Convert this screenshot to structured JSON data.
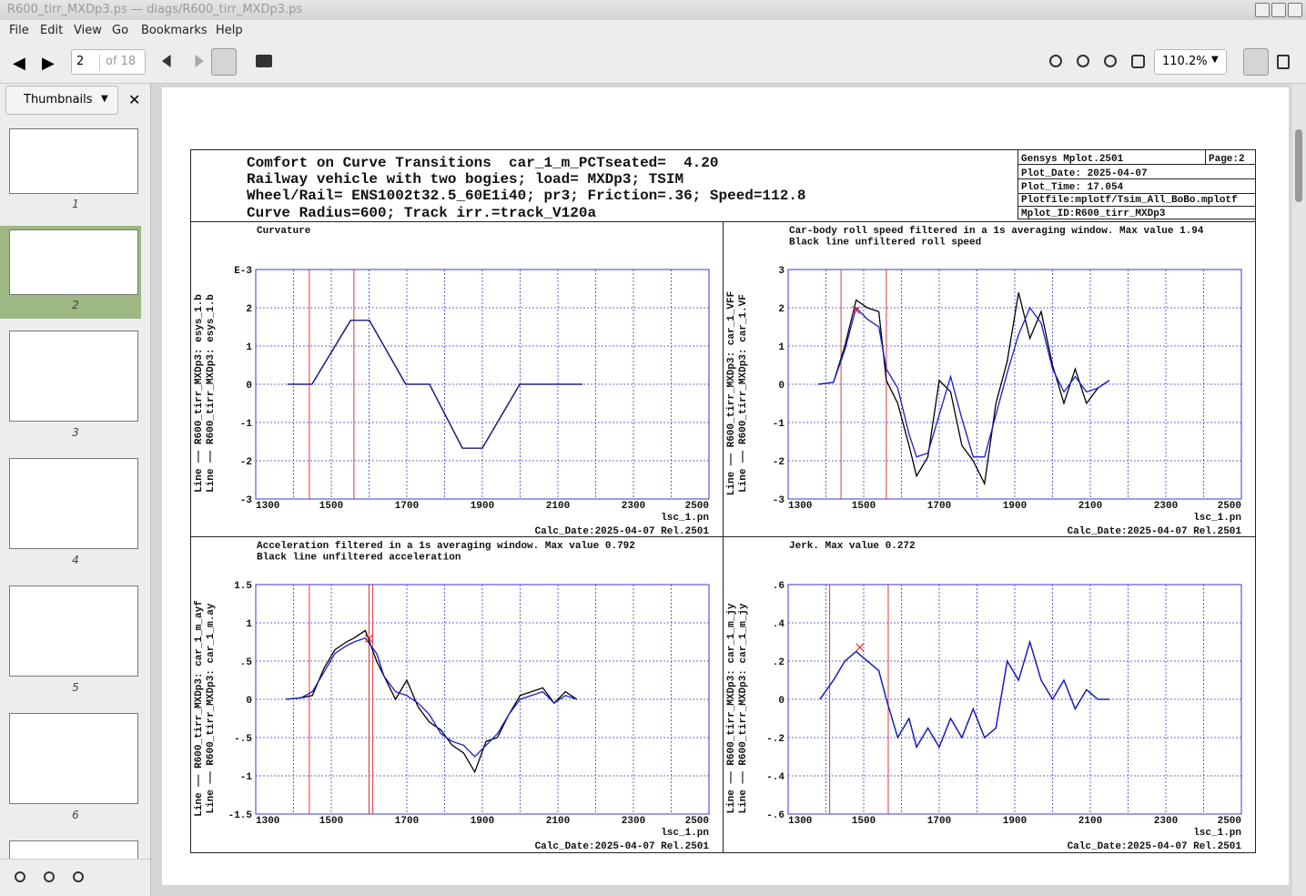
{
  "window": {
    "title": "R600_tirr_MXDp3.ps — diags/R600_tirr_MXDp3.ps"
  },
  "menu": [
    "File",
    "Edit",
    "View",
    "Go",
    "Bookmarks",
    "Help"
  ],
  "toolbar": {
    "page": "2",
    "page_count": "of 18",
    "zoom": "110.2%"
  },
  "sidebar": {
    "mode": "Thumbnails",
    "pages": [
      "1",
      "2",
      "3",
      "4",
      "5",
      "6"
    ]
  },
  "document": {
    "header": [
      "Comfort on Curve Transitions  car_1_m_PCTseated=  4.20",
      "Railway vehicle with two bogies; load= MXDp3; TSIM",
      "Wheel/Rail= ENS1002t32.5_60E1i40; pr3; Friction=.36; Speed=112.8",
      "Curve Radius=600; Track irr.=track_V120a"
    ],
    "info": {
      "program": "Gensys Mplot.2501",
      "page": "Page:2",
      "plot_date": "Plot_Date: 2025-04-07",
      "plot_time": "Plot_Time: 17.054",
      "plotfile": "Plotfile:mplotf/Tsim_All_BoBo.mplotf",
      "mplot_id": "Mplot_ID:R600_tirr_MXDp3"
    }
  },
  "chart_data": [
    {
      "type": "line",
      "title": [
        "Curvature"
      ],
      "x": [
        1384,
        1449,
        1551,
        1601,
        1697,
        1760,
        1847,
        1900,
        1999,
        2165
      ],
      "series": [
        {
          "name": "Line —— R600_tirr_MXDp3: esys_1.b",
          "color": "#1a1a8c",
          "values": [
            0,
            0,
            1.67,
            1.67,
            0,
            0,
            -1.67,
            -1.67,
            0,
            0
          ]
        },
        {
          "name": "Line —— R600_tirr_MXDp3: esys_1.b",
          "color": "#000000",
          "values": [
            0,
            0,
            1.67,
            1.67,
            0,
            0,
            -1.67,
            -1.67,
            0,
            0
          ]
        }
      ],
      "xlim": [
        1300,
        2500
      ],
      "xticks": [
        1300,
        1500,
        1700,
        1900,
        2100,
        2300,
        2500
      ],
      "xgrid": [
        1400,
        1600,
        1800,
        2000,
        2200,
        2400
      ],
      "ylim": [
        -3,
        3
      ],
      "yticks": [
        {
          "value": 3,
          "label": "E-3"
        },
        2,
        1,
        0,
        -1,
        -2,
        -3
      ],
      "markers": [
        1442,
        1560
      ],
      "xlabel": "lsc_1.pn",
      "footer": "Calc_Date:2025-04-07 Rel.2501",
      "grid": true
    },
    {
      "type": "line",
      "title": [
        "Car-body roll speed filtered in a 1s averaging window.  Max value  1.94",
        "Black line unfiltered roll speed"
      ],
      "x": [
        1380,
        1420,
        1450,
        1480,
        1510,
        1540,
        1560,
        1590,
        1620,
        1640,
        1670,
        1700,
        1730,
        1760,
        1790,
        1820,
        1850,
        1880,
        1910,
        1940,
        1970,
        2000,
        2030,
        2060,
        2090,
        2120,
        2150
      ],
      "series": [
        {
          "name": "Line —— R600_tirr_MXDp3: car_1_VFF",
          "color": "#1a1acc",
          "values": [
            0,
            0.05,
            0.9,
            2.0,
            1.7,
            1.5,
            0.4,
            -0.1,
            -1.3,
            -1.9,
            -1.8,
            -0.8,
            0.2,
            -0.9,
            -1.9,
            -1.9,
            -0.8,
            0.3,
            1.3,
            2.0,
            1.6,
            0.4,
            -0.2,
            0.2,
            -0.2,
            -0.1,
            0.1
          ]
        },
        {
          "name": "Line —— R600_tirr_MXDp3: car_1.VF",
          "color": "#000000",
          "values": [
            0,
            0.05,
            1.0,
            2.2,
            2.0,
            1.9,
            0.1,
            -0.5,
            -1.6,
            -2.4,
            -1.9,
            0.1,
            -0.2,
            -1.6,
            -2.0,
            -2.6,
            -0.5,
            0.6,
            2.4,
            1.2,
            1.9,
            0.5,
            -0.5,
            0.4,
            -0.5,
            -0.1,
            0.1
          ]
        }
      ],
      "xlim": [
        1300,
        2500
      ],
      "xticks": [
        1300,
        1500,
        1700,
        1900,
        2100,
        2300,
        2500
      ],
      "xgrid": [
        1400,
        1600,
        1800,
        2000,
        2200,
        2400
      ],
      "ylim": [
        -3,
        3
      ],
      "yticks": [
        3,
        2,
        1,
        0,
        -1,
        -2,
        -3
      ],
      "markers": [
        1440,
        1560
      ],
      "peak_marker": {
        "x": 1480,
        "y": 1.94
      },
      "xlabel": "lsc_1.pn",
      "footer": "Calc_Date:2025-04-07 Rel.2501",
      "grid": true
    },
    {
      "type": "line",
      "title": [
        "Acceleration filtered in a 1s averaging window.  Max value 0.792",
        "Black line unfiltered acceleration"
      ],
      "x": [
        1380,
        1420,
        1450,
        1480,
        1510,
        1540,
        1560,
        1590,
        1620,
        1640,
        1670,
        1700,
        1730,
        1760,
        1790,
        1820,
        1850,
        1880,
        1910,
        1940,
        1970,
        2000,
        2030,
        2060,
        2090,
        2120,
        2150
      ],
      "series": [
        {
          "name": "Line —— R600_tirr_MXDp3: car_1_m_ayf",
          "color": "#1a1acc",
          "values": [
            0,
            0.02,
            0.1,
            0.35,
            0.6,
            0.7,
            0.75,
            0.8,
            0.6,
            0.3,
            0.1,
            0.05,
            -0.05,
            -0.2,
            -0.45,
            -0.55,
            -0.6,
            -0.75,
            -0.6,
            -0.45,
            -0.2,
            0,
            0.05,
            0.1,
            -0.05,
            0.05,
            0
          ]
        },
        {
          "name": "Line —— R600_tirr_MXDp3: car_1_m.ay",
          "color": "#000000",
          "values": [
            0,
            0.02,
            0.05,
            0.4,
            0.65,
            0.75,
            0.8,
            0.9,
            0.5,
            0.3,
            0,
            0.25,
            -0.1,
            -0.3,
            -0.4,
            -0.6,
            -0.7,
            -0.95,
            -0.55,
            -0.5,
            -0.2,
            0.05,
            0.1,
            0.15,
            -0.05,
            0.1,
            0
          ]
        }
      ],
      "xlim": [
        1300,
        2500
      ],
      "xticks": [
        1300,
        1500,
        1700,
        1900,
        2100,
        2300,
        2500
      ],
      "xgrid": [
        1400,
        1600,
        1800,
        2000,
        2200,
        2400
      ],
      "ylim": [
        -1.5,
        1.5
      ],
      "yticks": [
        1.5,
        1,
        {
          "value": 0.5,
          "label": ".5"
        },
        0,
        {
          "value": -0.5,
          "label": "-.5"
        },
        -1,
        -1.5
      ],
      "markers": [
        1442,
        1600,
        1610
      ],
      "peak_marker": {
        "x": 1600,
        "y": 0.792
      },
      "xlabel": "lsc_1.pn",
      "footer": "Calc_Date:2025-04-07 Rel.2501",
      "grid": true
    },
    {
      "type": "line",
      "title": [
        "Jerk.  Max value 0.272"
      ],
      "x": [
        1384,
        1420,
        1450,
        1480,
        1510,
        1540,
        1560,
        1590,
        1620,
        1640,
        1670,
        1700,
        1730,
        1760,
        1790,
        1820,
        1850,
        1880,
        1910,
        1940,
        1970,
        2000,
        2030,
        2060,
        2090,
        2120,
        2150
      ],
      "series": [
        {
          "name": "Line —— R600_tirr_MXDp3: car_1_m_jy",
          "color": "#1a1acc",
          "values": [
            0,
            0.1,
            0.2,
            0.25,
            0.2,
            0.15,
            0,
            -0.2,
            -0.1,
            -0.25,
            -0.15,
            -0.25,
            -0.1,
            -0.2,
            -0.05,
            -0.2,
            -0.15,
            0.2,
            0.1,
            0.3,
            0.1,
            0,
            0.1,
            -0.05,
            0.05,
            0,
            0
          ]
        },
        {
          "name": "Line —— R600_tirr_MXDp3: car_1_m_jy",
          "color": "#000000",
          "values": [
            0,
            0.1,
            0.2,
            0.25,
            0.2,
            0.15,
            0,
            -0.2,
            -0.1,
            -0.25,
            -0.15,
            -0.25,
            -0.1,
            -0.2,
            -0.05,
            -0.2,
            -0.15,
            0.2,
            0.1,
            0.3,
            0.1,
            0,
            0.1,
            -0.05,
            0.05,
            0,
            0
          ]
        }
      ],
      "xlim": [
        1300,
        2500
      ],
      "xticks": [
        1300,
        1500,
        1700,
        1900,
        2100,
        2300,
        2500
      ],
      "xgrid": [
        1400,
        1600,
        1800,
        2000,
        2200,
        2400
      ],
      "ylim": [
        -0.6,
        0.6
      ],
      "yticks": [
        {
          "value": 0.6,
          "label": ".6"
        },
        {
          "value": 0.4,
          "label": ".4"
        },
        {
          "value": 0.2,
          "label": ".2"
        },
        0,
        {
          "value": -0.2,
          "label": "-.2"
        },
        {
          "value": -0.4,
          "label": "-.4"
        },
        {
          "value": -0.6,
          "label": "-.6"
        }
      ],
      "markers": [
        1410,
        1565
      ],
      "peak_marker": {
        "x": 1490,
        "y": 0.272
      },
      "xlabel": "lsc_1.pn",
      "footer": "Calc_Date:2025-04-07 Rel.2501",
      "grid": true
    }
  ]
}
